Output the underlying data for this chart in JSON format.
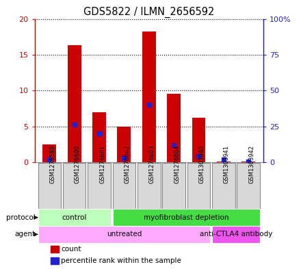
{
  "title": "GDS5822 / ILMN_2656592",
  "samples": [
    "GSM1276599",
    "GSM1276600",
    "GSM1276601",
    "GSM1276602",
    "GSM1276603",
    "GSM1276604",
    "GSM1303940",
    "GSM1303941",
    "GSM1303942"
  ],
  "counts": [
    2.5,
    16.3,
    7.0,
    5.0,
    18.2,
    9.5,
    6.2,
    0.1,
    0.05
  ],
  "percentiles": [
    2.0,
    26.0,
    20.0,
    3.0,
    40.0,
    12.0,
    4.0,
    2.0,
    0.5
  ],
  "ylim_left": [
    0,
    20
  ],
  "ylim_right": [
    0,
    100
  ],
  "yticks_left": [
    0,
    5,
    10,
    15,
    20
  ],
  "yticks_right": [
    0,
    25,
    50,
    75,
    100
  ],
  "ytick_labels_left": [
    "0",
    "5",
    "10",
    "15",
    "20"
  ],
  "ytick_labels_right": [
    "0",
    "25",
    "50",
    "75",
    "100%"
  ],
  "bar_color": "#cc0000",
  "dot_color": "#2222cc",
  "protocol_groups": [
    {
      "label": "control",
      "start": 0,
      "end": 3,
      "color": "#bbffbb"
    },
    {
      "label": "myofibroblast depletion",
      "start": 3,
      "end": 9,
      "color": "#44dd44"
    }
  ],
  "agent_groups": [
    {
      "label": "untreated",
      "start": 0,
      "end": 7,
      "color": "#ffaaff"
    },
    {
      "label": "anti-CTLA4 antibody",
      "start": 7,
      "end": 9,
      "color": "#ee55ee"
    }
  ],
  "legend_count_label": "count",
  "legend_pct_label": "percentile rank within the sample",
  "left_axis_color": "#cc0000",
  "right_axis_color": "#2222cc",
  "plot_bg": "#ffffff",
  "sample_box_bg": "#d8d8d8",
  "sample_box_edge": "#888888"
}
